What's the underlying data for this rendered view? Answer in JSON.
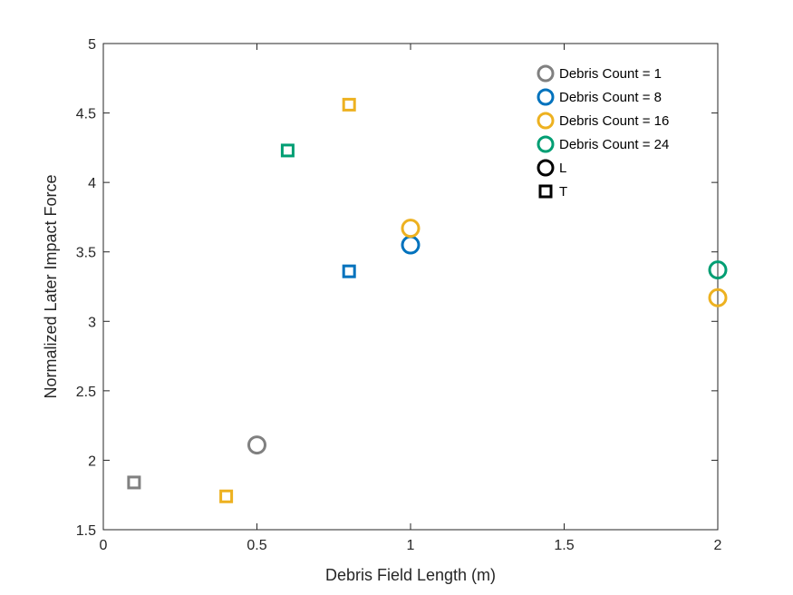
{
  "chart_data": {
    "type": "scatter",
    "title": "",
    "xlabel": "Debris Field Length (m)",
    "ylabel": "Normalized Later Impact Force",
    "xlim": [
      0,
      2
    ],
    "ylim": [
      1.5,
      5
    ],
    "xticks": [
      0,
      0.5,
      1,
      1.5,
      2
    ],
    "xtick_labels": [
      "0",
      "0.5",
      "1",
      "1.5",
      "2"
    ],
    "yticks": [
      1.5,
      2,
      2.5,
      3,
      3.5,
      4,
      4.5,
      5
    ],
    "ytick_labels": [
      "1.5",
      "2",
      "2.5",
      "3",
      "3.5",
      "4",
      "4.5",
      "5"
    ],
    "grid": false,
    "legend_position": "top-right",
    "series": [
      {
        "name": "Debris Count = 1",
        "color": "#808080",
        "points": [
          {
            "x": 0.5,
            "y": 2.11,
            "marker": "circle"
          },
          {
            "x": 0.1,
            "y": 1.84,
            "marker": "square"
          }
        ]
      },
      {
        "name": "Debris Count = 8",
        "color": "#0072BD",
        "points": [
          {
            "x": 1.0,
            "y": 3.55,
            "marker": "circle"
          },
          {
            "x": 0.8,
            "y": 3.36,
            "marker": "square"
          }
        ]
      },
      {
        "name": "Debris Count = 16",
        "color": "#EDB120",
        "points": [
          {
            "x": 1.0,
            "y": 3.67,
            "marker": "circle"
          },
          {
            "x": 2.0,
            "y": 3.17,
            "marker": "circle"
          },
          {
            "x": 0.8,
            "y": 4.56,
            "marker": "square"
          },
          {
            "x": 0.4,
            "y": 1.74,
            "marker": "square"
          }
        ]
      },
      {
        "name": "Debris Count = 24",
        "color": "#009E73",
        "points": [
          {
            "x": 2.0,
            "y": 3.37,
            "marker": "circle"
          },
          {
            "x": 0.6,
            "y": 4.23,
            "marker": "square"
          }
        ]
      }
    ],
    "marker_legend": [
      {
        "name": "L",
        "marker": "circle",
        "color": "#000000"
      },
      {
        "name": "T",
        "marker": "square",
        "color": "#000000"
      }
    ]
  }
}
